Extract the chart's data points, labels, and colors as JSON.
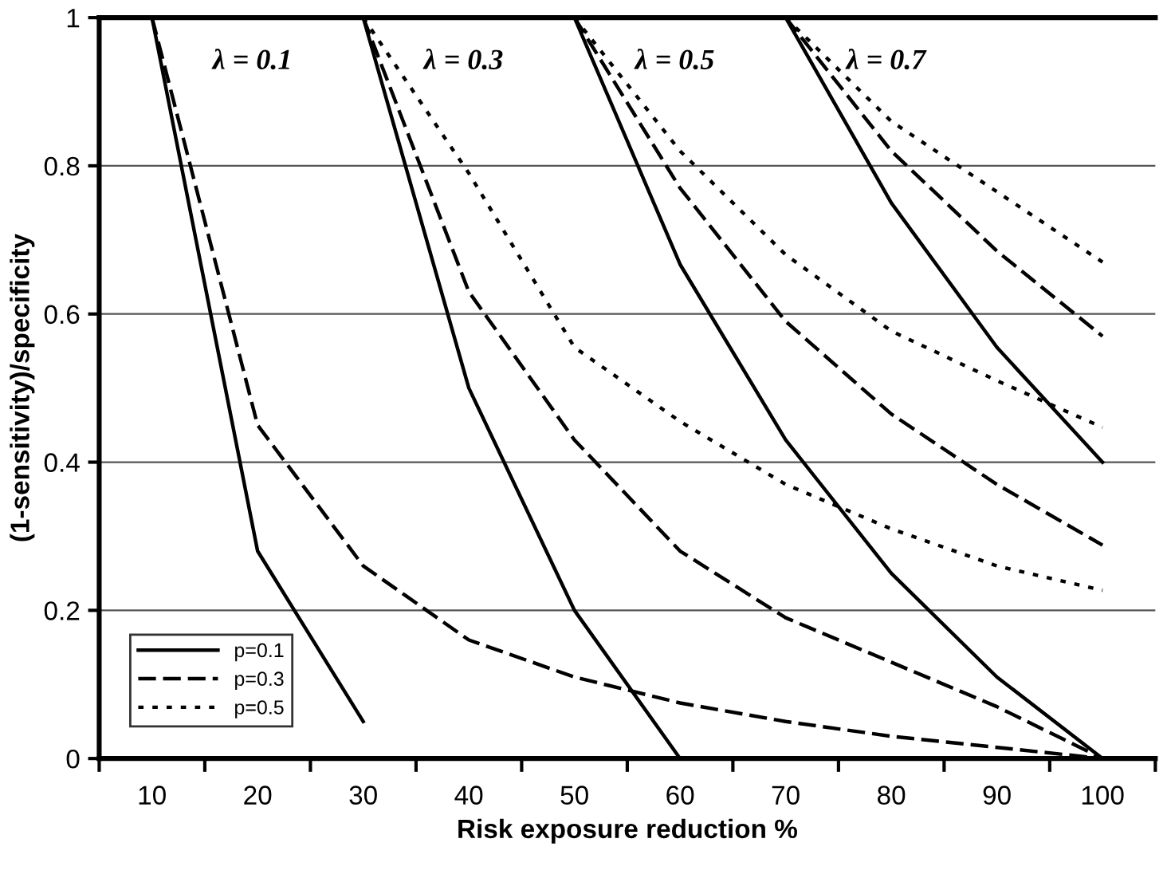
{
  "chart_data": {
    "type": "line",
    "xlabel": "Risk exposure reduction %",
    "ylabel": "(1-sensitivity)/specificity",
    "categories": [
      "10",
      "20",
      "30",
      "40",
      "50",
      "60",
      "70",
      "80",
      "90",
      "100"
    ],
    "ylim": [
      0,
      1
    ],
    "yticks": [
      0,
      0.2,
      0.4,
      0.6,
      0.8,
      1
    ],
    "grid": "y",
    "legend": "bottom left",
    "marker": "none",
    "series": [
      {
        "name": "p=0.1",
        "color": "#000000",
        "line_style": "solid",
        "values": [
          1,
          0.28,
          0.05,
          null,
          null,
          null,
          null,
          null,
          null,
          null
        ]
      },
      {
        "name": "p=0.3",
        "color": "#000000",
        "line_style": "dashed",
        "values": [
          1,
          0.45,
          0.26,
          0.16,
          0.11,
          0.075,
          0.05,
          0.03,
          0.015,
          0
        ]
      },
      {
        "name": "p=0.5",
        "color": "#000000",
        "line_style": "dotted",
        "values": [
          null,
          null,
          1,
          0.79,
          0.555,
          0.455,
          0.37,
          0.31,
          0.26,
          0.227
        ]
      },
      {
        "color": "#000000",
        "line_style": "solid",
        "values": [
          null,
          null,
          1,
          0.5,
          0.2,
          0,
          null,
          null,
          null,
          null
        ]
      },
      {
        "color": "#000000",
        "line_style": "dashed",
        "values": [
          null,
          null,
          1,
          0.63,
          0.43,
          0.28,
          0.19,
          0.13,
          0.07,
          0
        ]
      },
      {
        "color": "#000000",
        "line_style": "solid",
        "values": [
          null,
          null,
          null,
          null,
          1,
          0.667,
          0.43,
          0.25,
          0.11,
          0
        ]
      },
      {
        "color": "#000000",
        "line_style": "dashed",
        "values": [
          null,
          null,
          null,
          null,
          1,
          0.77,
          0.59,
          0.465,
          0.37,
          0.288
        ]
      },
      {
        "color": "#000000",
        "line_style": "dotted",
        "values": [
          null,
          null,
          null,
          null,
          1,
          0.82,
          0.68,
          0.577,
          0.51,
          0.447
        ]
      },
      {
        "color": "#000000",
        "line_style": "solid",
        "values": [
          null,
          null,
          null,
          null,
          null,
          null,
          1,
          0.75,
          0.555,
          0.4
        ]
      },
      {
        "color": "#000000",
        "line_style": "dashed",
        "values": [
          null,
          null,
          null,
          null,
          null,
          null,
          1,
          0.82,
          0.685,
          0.57
        ]
      },
      {
        "color": "#000000",
        "line_style": "dotted",
        "values": [
          null,
          null,
          null,
          null,
          null,
          null,
          1,
          0.86,
          0.765,
          0.67
        ]
      }
    ],
    "annotations": [
      "λ = 0.1",
      "λ = 0.3",
      "λ = 0.5",
      "λ = 0.7"
    ]
  }
}
